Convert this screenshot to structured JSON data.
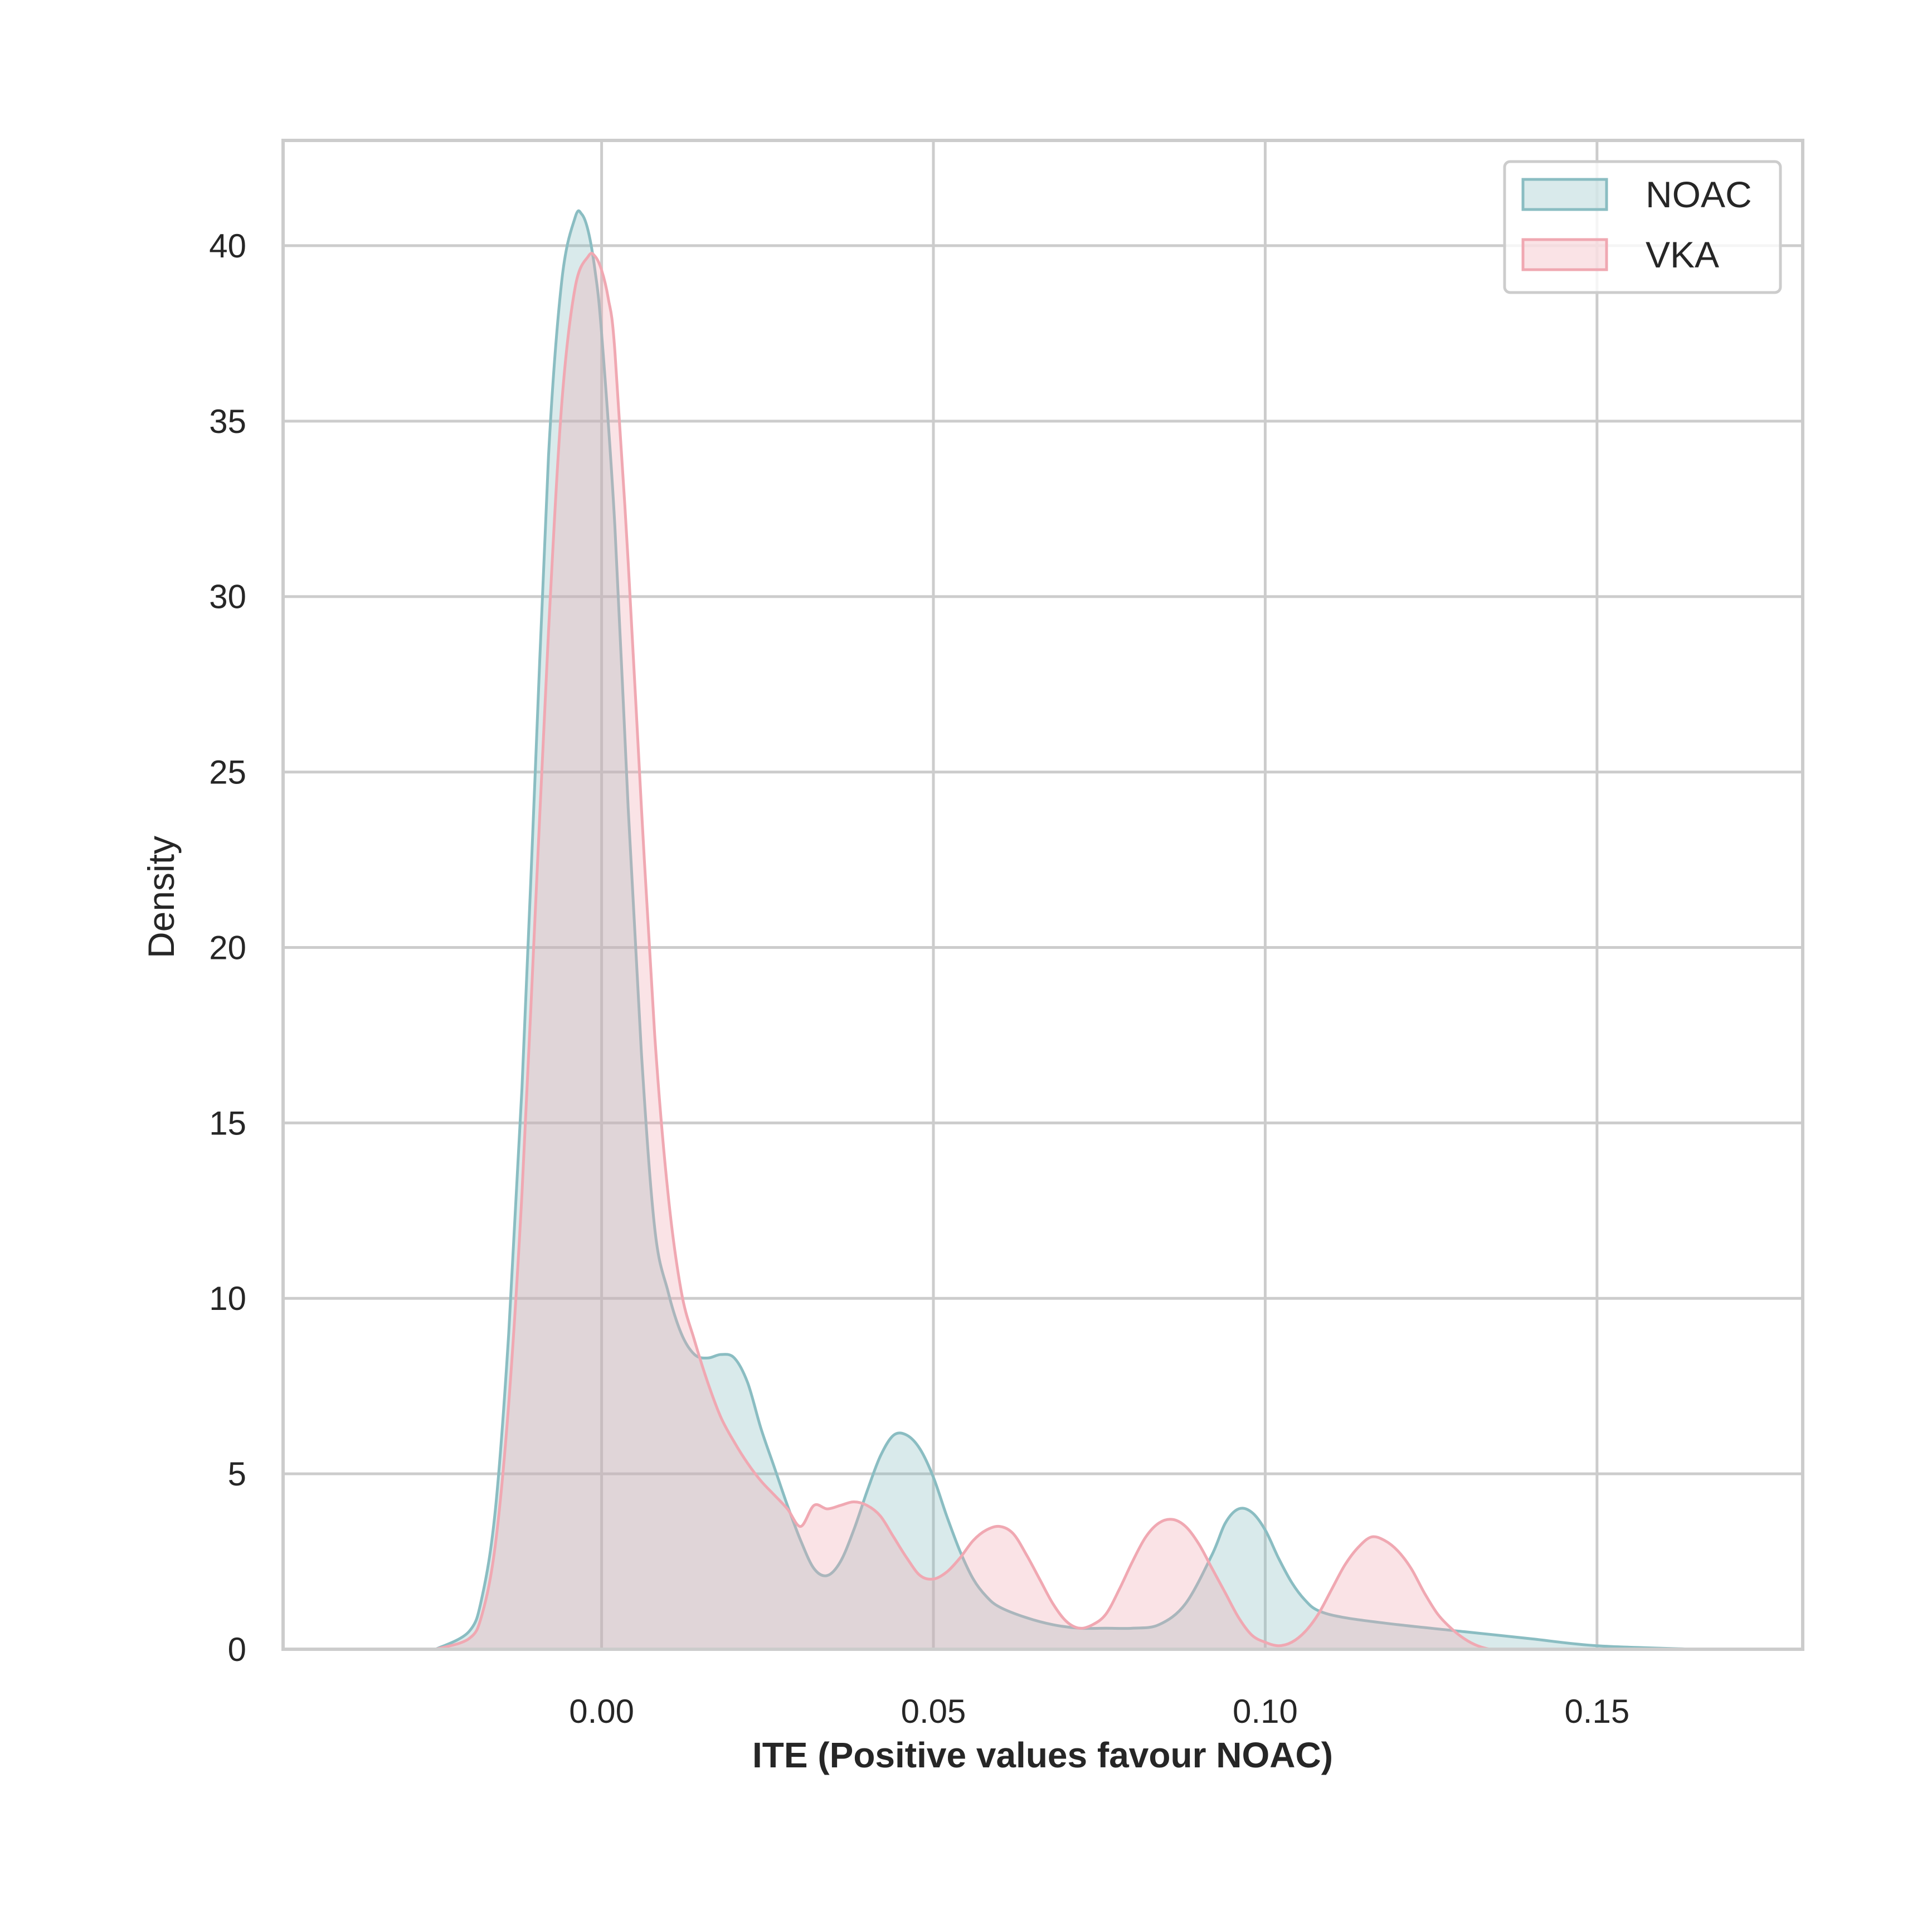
{
  "chart_data": {
    "type": "area",
    "title": "",
    "xlabel": "ITE (Positive values favour NOAC)",
    "ylabel": "Density",
    "xlim": [
      -0.048,
      0.181
    ],
    "ylim": [
      0,
      43
    ],
    "x_ticks": [
      0.0,
      0.05,
      0.1,
      0.15
    ],
    "x_tick_labels": [
      "0.00",
      "0.05",
      "0.10",
      "0.15"
    ],
    "y_ticks": [
      0,
      5,
      10,
      15,
      20,
      25,
      30,
      35,
      40
    ],
    "y_tick_labels": [
      "0",
      "5",
      "10",
      "15",
      "20",
      "25",
      "30",
      "35",
      "40"
    ],
    "grid": true,
    "legend_position": "top-right",
    "series": [
      {
        "name": "NOAC",
        "color": "#8abdc2",
        "fill": "#d6e8eb",
        "x": [
          -0.025,
          -0.02,
          -0.018,
          -0.016,
          -0.014,
          -0.012,
          -0.01,
          -0.008,
          -0.006,
          -0.004,
          -0.003,
          -0.002,
          -0.001,
          0.0,
          0.002,
          0.004,
          0.006,
          0.008,
          0.01,
          0.012,
          0.014,
          0.016,
          0.018,
          0.02,
          0.022,
          0.024,
          0.026,
          0.028,
          0.03,
          0.032,
          0.034,
          0.036,
          0.038,
          0.04,
          0.042,
          0.044,
          0.046,
          0.048,
          0.05,
          0.052,
          0.054,
          0.056,
          0.058,
          0.06,
          0.064,
          0.068,
          0.072,
          0.076,
          0.08,
          0.084,
          0.088,
          0.092,
          0.094,
          0.096,
          0.098,
          0.1,
          0.102,
          0.104,
          0.106,
          0.108,
          0.112,
          0.12,
          0.13,
          0.14,
          0.15,
          0.165
        ],
        "values": [
          0.0,
          0.5,
          1.5,
          4.0,
          9.0,
          16.0,
          25.0,
          34.0,
          39.0,
          40.8,
          40.9,
          40.4,
          39.3,
          37.5,
          32.0,
          24.0,
          17.0,
          12.0,
          10.2,
          9.0,
          8.4,
          8.3,
          8.4,
          8.3,
          7.6,
          6.3,
          5.2,
          4.1,
          3.1,
          2.3,
          2.1,
          2.5,
          3.4,
          4.5,
          5.5,
          6.1,
          6.1,
          5.7,
          4.9,
          3.8,
          2.8,
          2.0,
          1.5,
          1.2,
          0.9,
          0.7,
          0.6,
          0.6,
          0.6,
          0.7,
          1.3,
          2.7,
          3.6,
          4.0,
          3.9,
          3.4,
          2.6,
          1.9,
          1.4,
          1.1,
          0.9,
          0.7,
          0.5,
          0.3,
          0.1,
          0.0
        ]
      },
      {
        "name": "VKA",
        "color": "#f0a8b2",
        "fill": "#f6cbd2",
        "x": [
          -0.025,
          -0.02,
          -0.018,
          -0.016,
          -0.014,
          -0.012,
          -0.01,
          -0.008,
          -0.006,
          -0.004,
          -0.002,
          -0.001,
          0.0,
          0.001,
          0.002,
          0.004,
          0.006,
          0.008,
          0.01,
          0.012,
          0.014,
          0.016,
          0.018,
          0.02,
          0.022,
          0.024,
          0.026,
          0.028,
          0.03,
          0.032,
          0.034,
          0.036,
          0.038,
          0.04,
          0.042,
          0.044,
          0.046,
          0.048,
          0.05,
          0.052,
          0.054,
          0.056,
          0.058,
          0.06,
          0.062,
          0.064,
          0.066,
          0.068,
          0.07,
          0.072,
          0.074,
          0.076,
          0.078,
          0.08,
          0.082,
          0.084,
          0.086,
          0.088,
          0.09,
          0.092,
          0.094,
          0.096,
          0.098,
          0.1,
          0.102,
          0.104,
          0.106,
          0.108,
          0.11,
          0.112,
          0.114,
          0.116,
          0.118,
          0.12,
          0.122,
          0.124,
          0.126,
          0.128,
          0.13,
          0.132,
          0.134,
          0.136,
          0.138,
          0.14,
          0.142,
          0.145
        ],
        "values": [
          0.0,
          0.3,
          1.0,
          3.0,
          7.0,
          13.0,
          21.0,
          29.0,
          35.5,
          38.8,
          39.7,
          39.7,
          39.3,
          38.5,
          37.0,
          31.0,
          24.0,
          17.5,
          13.0,
          10.2,
          8.8,
          7.6,
          6.6,
          5.9,
          5.3,
          4.8,
          4.4,
          4.0,
          3.5,
          4.1,
          4.0,
          4.1,
          4.2,
          4.1,
          3.8,
          3.2,
          2.6,
          2.1,
          2.0,
          2.2,
          2.6,
          3.1,
          3.4,
          3.5,
          3.3,
          2.7,
          2.0,
          1.3,
          0.8,
          0.6,
          0.7,
          1.0,
          1.7,
          2.5,
          3.2,
          3.6,
          3.7,
          3.5,
          3.0,
          2.3,
          1.6,
          0.9,
          0.4,
          0.2,
          0.1,
          0.2,
          0.5,
          1.0,
          1.7,
          2.4,
          2.9,
          3.2,
          3.1,
          2.8,
          2.3,
          1.6,
          1.0,
          0.6,
          0.3,
          0.1,
          0.0,
          0.0,
          0.0,
          0.0,
          0.0,
          0.0
        ]
      }
    ]
  }
}
